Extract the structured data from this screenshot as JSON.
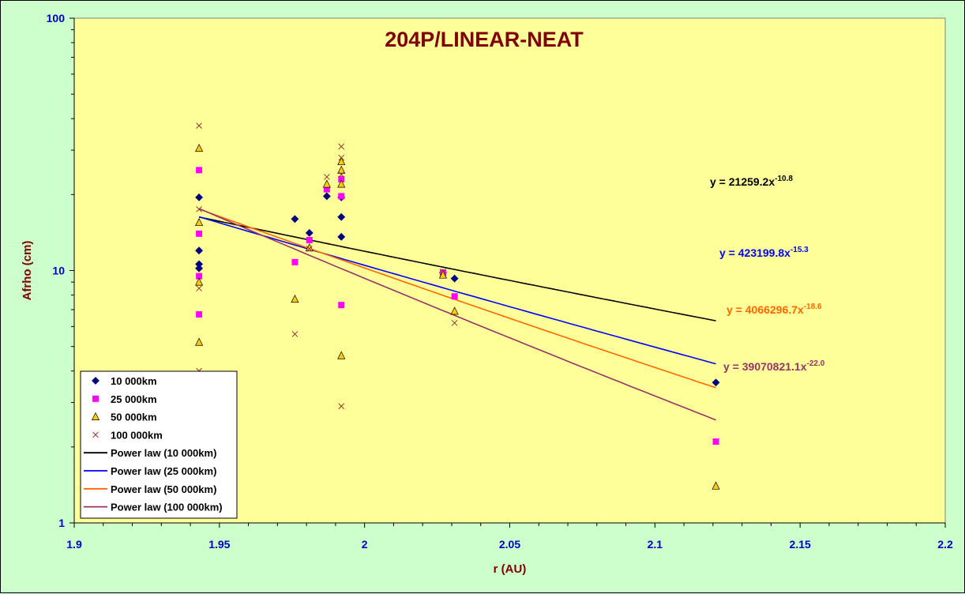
{
  "chart_data": {
    "type": "scatter",
    "title": "204P/LINEAR-NEAT",
    "xlabel": "r (AU)",
    "ylabel": "Afrho (cm)",
    "xlim": [
      1.9,
      2.2
    ],
    "ylim": [
      1,
      100
    ],
    "y_scale": "log",
    "x_ticks": [
      "1.9",
      "1.95",
      "2",
      "2.05",
      "2.1",
      "2.15",
      "2.2"
    ],
    "y_ticks": [
      "1",
      "10",
      "100"
    ],
    "grid": false,
    "legend_position": "bottom-left",
    "colors": {
      "plot_background": "#ffff99",
      "chart_background": "#ccffcc",
      "title": "#800000",
      "tick_labels": "#0000cc"
    },
    "series": [
      {
        "name": "10 000km",
        "marker": "diamond",
        "color": "#000080",
        "points": [
          [
            1.943,
            19.5
          ],
          [
            1.943,
            12.0
          ],
          [
            1.943,
            10.6
          ],
          [
            1.943,
            10.2
          ],
          [
            1.976,
            16.0
          ],
          [
            1.981,
            14.1
          ],
          [
            1.987,
            19.7
          ],
          [
            1.992,
            16.3
          ],
          [
            1.992,
            13.6
          ],
          [
            1.992,
            19.5
          ],
          [
            2.027,
            9.8
          ],
          [
            2.031,
            9.3
          ],
          [
            2.121,
            3.6
          ]
        ]
      },
      {
        "name": "25 000km",
        "marker": "square",
        "color": "#ff00ff",
        "points": [
          [
            1.943,
            25.0
          ],
          [
            1.943,
            14.0
          ],
          [
            1.943,
            9.5
          ],
          [
            1.943,
            6.7
          ],
          [
            1.976,
            10.8
          ],
          [
            1.981,
            13.2
          ],
          [
            1.987,
            21.0
          ],
          [
            1.992,
            23.0
          ],
          [
            1.992,
            19.7
          ],
          [
            1.992,
            7.3
          ],
          [
            2.027,
            9.8
          ],
          [
            2.031,
            7.9
          ],
          [
            2.121,
            2.1
          ]
        ]
      },
      {
        "name": "50 000km",
        "marker": "triangle",
        "color": "#ffcc00",
        "points": [
          [
            1.943,
            30.5
          ],
          [
            1.943,
            15.5
          ],
          [
            1.943,
            9.0
          ],
          [
            1.943,
            5.2
          ],
          [
            1.976,
            7.7
          ],
          [
            1.981,
            12.3
          ],
          [
            1.987,
            22.0
          ],
          [
            1.992,
            27.0
          ],
          [
            1.992,
            22.0
          ],
          [
            1.992,
            25.0
          ],
          [
            1.992,
            4.6
          ],
          [
            2.027,
            9.6
          ],
          [
            2.031,
            6.9
          ],
          [
            2.121,
            1.4
          ]
        ]
      },
      {
        "name": "100 000km",
        "marker": "x",
        "color": "#993333",
        "points": [
          [
            1.943,
            37.5
          ],
          [
            1.943,
            17.5
          ],
          [
            1.943,
            8.5
          ],
          [
            1.943,
            4.0
          ],
          [
            1.976,
            5.6
          ],
          [
            1.981,
            12.2
          ],
          [
            1.987,
            23.5
          ],
          [
            1.992,
            31.0
          ],
          [
            1.992,
            28.0
          ],
          [
            1.992,
            24.0
          ],
          [
            1.992,
            2.9
          ],
          [
            2.027,
            9.9
          ],
          [
            2.031,
            6.2
          ]
        ]
      }
    ],
    "trendlines": [
      {
        "name": "Power law (10 000km)",
        "color": "#000000",
        "equation": "y = 21259.2x",
        "exponent": "-10.8",
        "a": 21259.2,
        "b": -10.8,
        "x_range": [
          1.943,
          2.121
        ]
      },
      {
        "name": "Power law (25 000km)",
        "color": "#0000ff",
        "equation": "y = 423199.8x",
        "exponent": "-15.3",
        "a": 423199.8,
        "b": -15.3,
        "x_range": [
          1.943,
          2.121
        ]
      },
      {
        "name": "Power law (50 000km)",
        "color": "#ff6600",
        "equation": "y = 4066296.7x",
        "exponent": "-18.6",
        "a": 4066296.7,
        "b": -18.6,
        "x_range": [
          1.943,
          2.121
        ]
      },
      {
        "name": "Power law (100 000km)",
        "color": "#993366",
        "equation": "y = 39070821.1x",
        "exponent": "-22.0",
        "a": 39070821.1,
        "b": -22.0,
        "x_range": [
          1.943,
          2.121
        ]
      }
    ]
  }
}
